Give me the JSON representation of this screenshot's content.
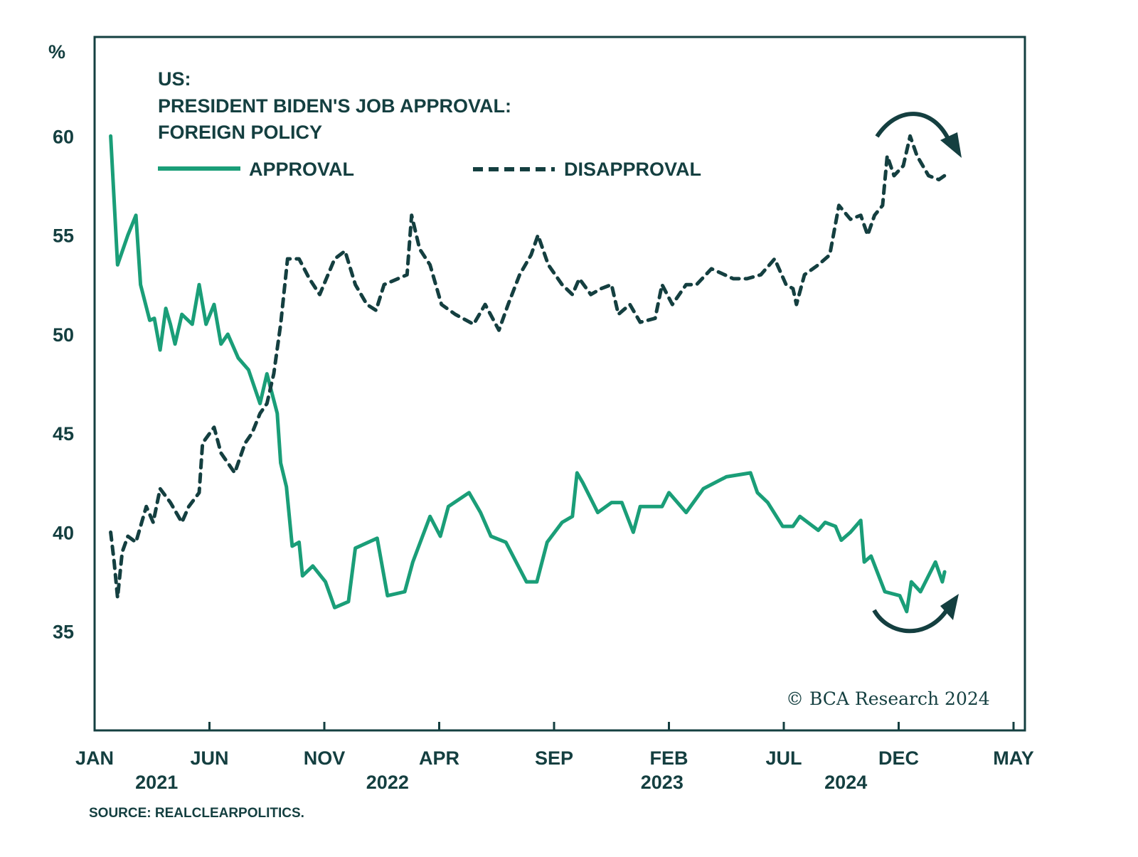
{
  "colors": {
    "approval": "#1a9e78",
    "disapproval": "#143f40",
    "axis": "#143f40"
  },
  "chart_data": {
    "type": "line",
    "title_lines": [
      "US:",
      "PRESIDENT BIDEN'S JOB APPROVAL:",
      "FOREIGN POLICY"
    ],
    "ylabel": "%",
    "xlabel": "",
    "ylim": [
      30,
      65
    ],
    "yticks": [
      35,
      40,
      45,
      50,
      55,
      60
    ],
    "x_unit": "months since Jan 2021",
    "xlim": [
      0,
      40
    ],
    "xticks": [
      {
        "m": 0,
        "label": "JAN"
      },
      {
        "m": 5,
        "label": "JUN"
      },
      {
        "m": 10,
        "label": "NOV"
      },
      {
        "m": 15,
        "label": "APR"
      },
      {
        "m": 20,
        "label": "SEP"
      },
      {
        "m": 25,
        "label": "FEB"
      },
      {
        "m": 30,
        "label": "JUL"
      },
      {
        "m": 35,
        "label": "DEC"
      },
      {
        "m": 40,
        "label": "MAY"
      }
    ],
    "year_labels": [
      {
        "m": 2.7,
        "label": "2021"
      },
      {
        "m": 12.75,
        "label": "2022"
      },
      {
        "m": 24.7,
        "label": "2023"
      },
      {
        "m": 32.7,
        "label": "2024"
      }
    ],
    "legend": {
      "approval": "APPROVAL",
      "disapproval": "DISAPPROVAL",
      "placement": "top-left"
    },
    "grid": false,
    "series": [
      {
        "name": "APPROVAL",
        "style": "solid",
        "x": [
          0.7,
          1.0,
          1.45,
          1.8,
          2.0,
          2.4,
          2.6,
          2.85,
          3.1,
          3.3,
          3.5,
          3.8,
          4.25,
          4.55,
          4.85,
          5.2,
          5.5,
          5.8,
          6.25,
          6.7,
          7.2,
          7.5,
          7.95,
          8.1,
          8.35,
          8.6,
          8.9,
          9.05,
          9.5,
          10.05,
          10.45,
          11.05,
          11.35,
          12.3,
          12.75,
          13.5,
          13.85,
          14.6,
          15.05,
          15.4,
          16.3,
          16.8,
          17.25,
          17.9,
          18.8,
          19.25,
          19.7,
          20.35,
          20.8,
          21.0,
          21.25,
          21.9,
          22.5,
          22.95,
          23.45,
          23.75,
          24.7,
          25.0,
          25.75,
          26.5,
          27.5,
          28.55,
          28.85,
          29.3,
          29.95,
          30.4,
          30.7,
          31.5,
          31.8,
          32.25,
          32.5,
          32.9,
          33.35,
          33.5,
          33.8,
          34.4,
          35.05,
          35.35,
          35.55,
          35.95,
          36.6,
          36.9,
          37.0
        ],
        "y": [
          60,
          53.5,
          55,
          56,
          52.5,
          50.7,
          50.8,
          49.2,
          51.3,
          50.5,
          49.5,
          51,
          50.5,
          52.5,
          50.5,
          51.5,
          49.5,
          50,
          48.8,
          48.2,
          46.5,
          48,
          46,
          43.5,
          42.3,
          39.3,
          39.5,
          37.8,
          38.3,
          37.5,
          36.2,
          36.5,
          39.2,
          39.7,
          36.8,
          37,
          38.5,
          40.8,
          39.8,
          41.3,
          42,
          41,
          39.8,
          39.5,
          37.5,
          37.5,
          39.5,
          40.5,
          40.8,
          43,
          42.5,
          41,
          41.5,
          41.5,
          40,
          41.3,
          41.3,
          42,
          41,
          42.2,
          42.8,
          43,
          42,
          41.5,
          40.3,
          40.3,
          40.8,
          40.1,
          40.5,
          40.3,
          39.6,
          40,
          40.6,
          38.5,
          38.8,
          37,
          36.8,
          36,
          37.5,
          37,
          38.5,
          37.5,
          38
        ]
      },
      {
        "name": "DISAPPROVAL",
        "style": "dashed",
        "x": [
          0.7,
          0.85,
          1.0,
          1.2,
          1.45,
          1.8,
          2.25,
          2.55,
          2.85,
          3.3,
          3.8,
          4.1,
          4.55,
          4.7,
          5.2,
          5.5,
          5.8,
          6.1,
          6.55,
          6.85,
          7.2,
          7.5,
          7.8,
          8.1,
          8.4,
          8.9,
          9.35,
          9.8,
          10.45,
          10.9,
          11.35,
          11.85,
          12.25,
          12.6,
          13.2,
          13.6,
          13.8,
          14.15,
          14.6,
          15.1,
          15.7,
          16.5,
          17.0,
          17.6,
          18.0,
          18.5,
          19.0,
          19.3,
          19.75,
          20.35,
          20.8,
          21.1,
          21.6,
          22.05,
          22.5,
          22.8,
          23.3,
          23.75,
          24.4,
          24.7,
          25.15,
          25.75,
          26.2,
          26.85,
          27.8,
          28.4,
          29.0,
          29.6,
          30.1,
          30.4,
          30.55,
          30.9,
          31.5,
          32.0,
          32.4,
          32.9,
          33.35,
          33.65,
          33.95,
          34.3,
          34.5,
          34.8,
          35.2,
          35.5,
          35.8,
          36.3,
          36.75,
          37.0
        ],
        "y": [
          40,
          38.5,
          36.7,
          39,
          39.8,
          39.5,
          41.3,
          40.5,
          42.2,
          41.5,
          40.5,
          41.3,
          42,
          44.5,
          45.3,
          44,
          43.5,
          43,
          44.5,
          45,
          46,
          46.5,
          48,
          50.5,
          53.8,
          53.8,
          52.8,
          52,
          53.8,
          54.2,
          52.5,
          51.5,
          51.2,
          52.5,
          52.8,
          53,
          56,
          54.3,
          53.5,
          51.5,
          51,
          50.5,
          51.5,
          50.2,
          51.5,
          53,
          54,
          55,
          53.5,
          52.5,
          52,
          52.8,
          52,
          52.3,
          52.5,
          51,
          51.5,
          50.6,
          50.8,
          52.5,
          51.5,
          52.5,
          52.5,
          53.3,
          52.8,
          52.8,
          53,
          53.8,
          52.5,
          52.3,
          51.5,
          53,
          53.5,
          54,
          56.5,
          55.8,
          56,
          55,
          56,
          56.5,
          59,
          58,
          58.5,
          60,
          59,
          58,
          57.8,
          58
        ]
      }
    ],
    "annotations": {
      "copyright": "© BCA Research 2024",
      "source": "SOURCE: REALCLEARPOLITICS.",
      "arrows": [
        "disapproval-turning-down",
        "approval-turning-up"
      ]
    }
  }
}
